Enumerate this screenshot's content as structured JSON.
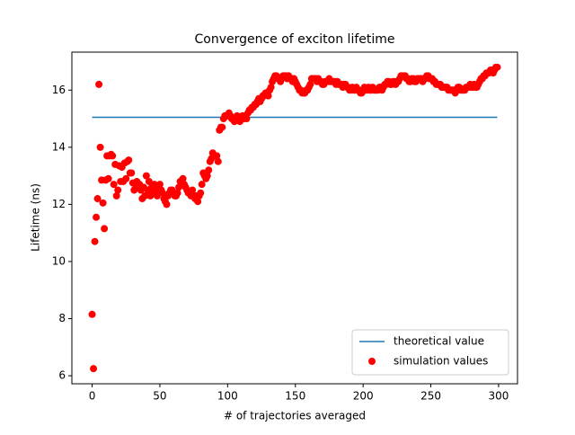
{
  "chart_data": {
    "type": "combo",
    "title": "Convergence of exciton lifetime",
    "xlabel": "# of trajectories averaged",
    "ylabel": "Lifetime (ns)",
    "xlim": [
      -14.95,
      313.95
    ],
    "ylim": [
      5.72,
      17.33
    ],
    "xticks": [
      0,
      50,
      100,
      150,
      200,
      250,
      300
    ],
    "yticks": [
      6,
      8,
      10,
      12,
      14,
      16
    ],
    "legend": "lower right",
    "series": [
      {
        "name": "theoretical value",
        "type": "line",
        "color": "#1f77b4",
        "x": [
          0,
          299
        ],
        "values": [
          15.05,
          15.05
        ]
      },
      {
        "name": "simulation values",
        "type": "scatter",
        "color": "#ff0000",
        "x": [
          0,
          1,
          2,
          3,
          4,
          5,
          6,
          7,
          8,
          9,
          10,
          11,
          12,
          13,
          14,
          15,
          16,
          17,
          18,
          19,
          20,
          21,
          22,
          23,
          24,
          25,
          26,
          27,
          28,
          29,
          30,
          31,
          32,
          33,
          34,
          35,
          36,
          37,
          38,
          39,
          40,
          41,
          42,
          43,
          44,
          45,
          46,
          47,
          48,
          49,
          50,
          51,
          52,
          53,
          54,
          55,
          56,
          57,
          58,
          59,
          60,
          61,
          62,
          63,
          64,
          65,
          66,
          67,
          68,
          69,
          70,
          71,
          72,
          73,
          74,
          75,
          76,
          77,
          78,
          79,
          80,
          81,
          82,
          83,
          84,
          85,
          86,
          87,
          88,
          89,
          90,
          91,
          92,
          93,
          94,
          95,
          96,
          97,
          98,
          99,
          100,
          101,
          102,
          103,
          104,
          105,
          106,
          107,
          108,
          109,
          110,
          111,
          112,
          113,
          114,
          115,
          116,
          117,
          118,
          119,
          120,
          121,
          122,
          123,
          124,
          125,
          126,
          127,
          128,
          129,
          130,
          131,
          132,
          133,
          134,
          135,
          136,
          137,
          138,
          139,
          140,
          141,
          142,
          143,
          144,
          145,
          146,
          147,
          148,
          149,
          150,
          151,
          152,
          153,
          154,
          155,
          156,
          157,
          158,
          159,
          160,
          161,
          162,
          163,
          164,
          165,
          166,
          167,
          168,
          169,
          170,
          171,
          172,
          173,
          174,
          175,
          176,
          177,
          178,
          179,
          180,
          181,
          182,
          183,
          184,
          185,
          186,
          187,
          188,
          189,
          190,
          191,
          192,
          193,
          194,
          195,
          196,
          197,
          198,
          199,
          200,
          201,
          202,
          203,
          204,
          205,
          206,
          207,
          208,
          209,
          210,
          211,
          212,
          213,
          214,
          215,
          216,
          217,
          218,
          219,
          220,
          221,
          222,
          223,
          224,
          225,
          226,
          227,
          228,
          229,
          230,
          231,
          232,
          233,
          234,
          235,
          236,
          237,
          238,
          239,
          240,
          241,
          242,
          243,
          244,
          245,
          246,
          247,
          248,
          249,
          250,
          251,
          252,
          253,
          254,
          255,
          256,
          257,
          258,
          259,
          260,
          261,
          262,
          263,
          264,
          265,
          266,
          267,
          268,
          269,
          270,
          271,
          272,
          273,
          274,
          275,
          276,
          277,
          278,
          279,
          280,
          281,
          282,
          283,
          284,
          285,
          286,
          287,
          288,
          289,
          290,
          291,
          292,
          293,
          294,
          295,
          296,
          297,
          298,
          299
        ],
        "values": [
          8.15,
          6.25,
          10.7,
          11.55,
          12.2,
          16.2,
          14.0,
          12.85,
          12.05,
          11.15,
          12.85,
          13.7,
          12.9,
          13.7,
          13.75,
          13.7,
          12.7,
          13.4,
          12.3,
          12.5,
          13.35,
          12.8,
          13.3,
          12.8,
          13.45,
          12.9,
          13.5,
          13.55,
          13.1,
          13.1,
          12.75,
          12.5,
          12.7,
          12.8,
          12.6,
          12.7,
          12.5,
          12.2,
          12.6,
          12.3,
          13.0,
          12.5,
          12.8,
          12.3,
          12.6,
          12.4,
          12.7,
          12.5,
          12.3,
          12.6,
          12.7,
          12.5,
          12.4,
          12.2,
          12.1,
          12.0,
          12.3,
          12.4,
          12.5,
          12.5,
          12.4,
          12.3,
          12.3,
          12.4,
          12.6,
          12.8,
          12.8,
          12.9,
          12.7,
          12.6,
          12.5,
          12.4,
          12.4,
          12.3,
          12.5,
          12.3,
          12.2,
          12.3,
          12.1,
          12.3,
          12.4,
          12.7,
          13.1,
          13.0,
          12.9,
          13.0,
          13.2,
          13.5,
          13.6,
          13.8,
          13.7,
          13.7,
          13.7,
          13.5,
          14.6,
          14.7,
          14.7,
          15.0,
          15.1,
          15.1,
          15.1,
          15.2,
          15.1,
          15.0,
          15.0,
          14.9,
          15.0,
          15.1,
          15.0,
          14.9,
          15.0,
          15.1,
          15.0,
          15.1,
          15.0,
          15.2,
          15.3,
          15.3,
          15.4,
          15.4,
          15.5,
          15.5,
          15.6,
          15.7,
          15.6,
          15.7,
          15.8,
          15.8,
          15.9,
          15.9,
          15.8,
          16.0,
          16.1,
          16.3,
          16.4,
          16.5,
          16.5,
          16.4,
          16.4,
          16.3,
          16.4,
          16.5,
          16.5,
          16.5,
          16.4,
          16.5,
          16.4,
          16.4,
          16.3,
          16.4,
          16.3,
          16.2,
          16.1,
          16.0,
          16.0,
          15.9,
          15.9,
          15.9,
          16.0,
          16.0,
          16.1,
          16.2,
          16.4,
          16.4,
          16.4,
          16.4,
          16.3,
          16.4,
          16.3,
          16.3,
          16.2,
          16.2,
          16.3,
          16.3,
          16.3,
          16.4,
          16.3,
          16.3,
          16.3,
          16.3,
          16.2,
          16.3,
          16.2,
          16.2,
          16.2,
          16.1,
          16.2,
          16.2,
          16.1,
          16.1,
          16.0,
          16.0,
          16.1,
          16.0,
          16.0,
          16.1,
          16.0,
          16.0,
          15.9,
          15.9,
          16.0,
          16.1,
          16.0,
          16.0,
          16.1,
          16.0,
          16.0,
          16.1,
          16.0,
          16.0,
          16.0,
          16.0,
          16.1,
          16.1,
          16.0,
          16.1,
          16.2,
          16.2,
          16.3,
          16.3,
          16.2,
          16.2,
          16.3,
          16.3,
          16.2,
          16.3,
          16.3,
          16.4,
          16.5,
          16.5,
          16.5,
          16.5,
          16.4,
          16.4,
          16.3,
          16.3,
          16.4,
          16.4,
          16.3,
          16.3,
          16.4,
          16.4,
          16.4,
          16.4,
          16.3,
          16.4,
          16.4,
          16.5,
          16.5,
          16.4,
          16.4,
          16.4,
          16.3,
          16.3,
          16.2,
          16.2,
          16.2,
          16.2,
          16.1,
          16.1,
          16.1,
          16.1,
          16.1,
          16.0,
          16.0,
          16.0,
          16.0,
          16.0,
          15.9,
          16.0,
          16.1,
          16.1,
          16.0,
          16.0,
          16.0,
          16.0,
          16.1,
          16.1,
          16.1,
          16.2,
          16.1,
          16.1,
          16.2,
          16.1,
          16.1,
          16.2,
          16.3,
          16.4,
          16.4,
          16.5,
          16.5,
          16.6,
          16.6,
          16.6,
          16.7,
          16.7,
          16.6,
          16.7,
          16.8,
          16.8
        ]
      }
    ]
  }
}
